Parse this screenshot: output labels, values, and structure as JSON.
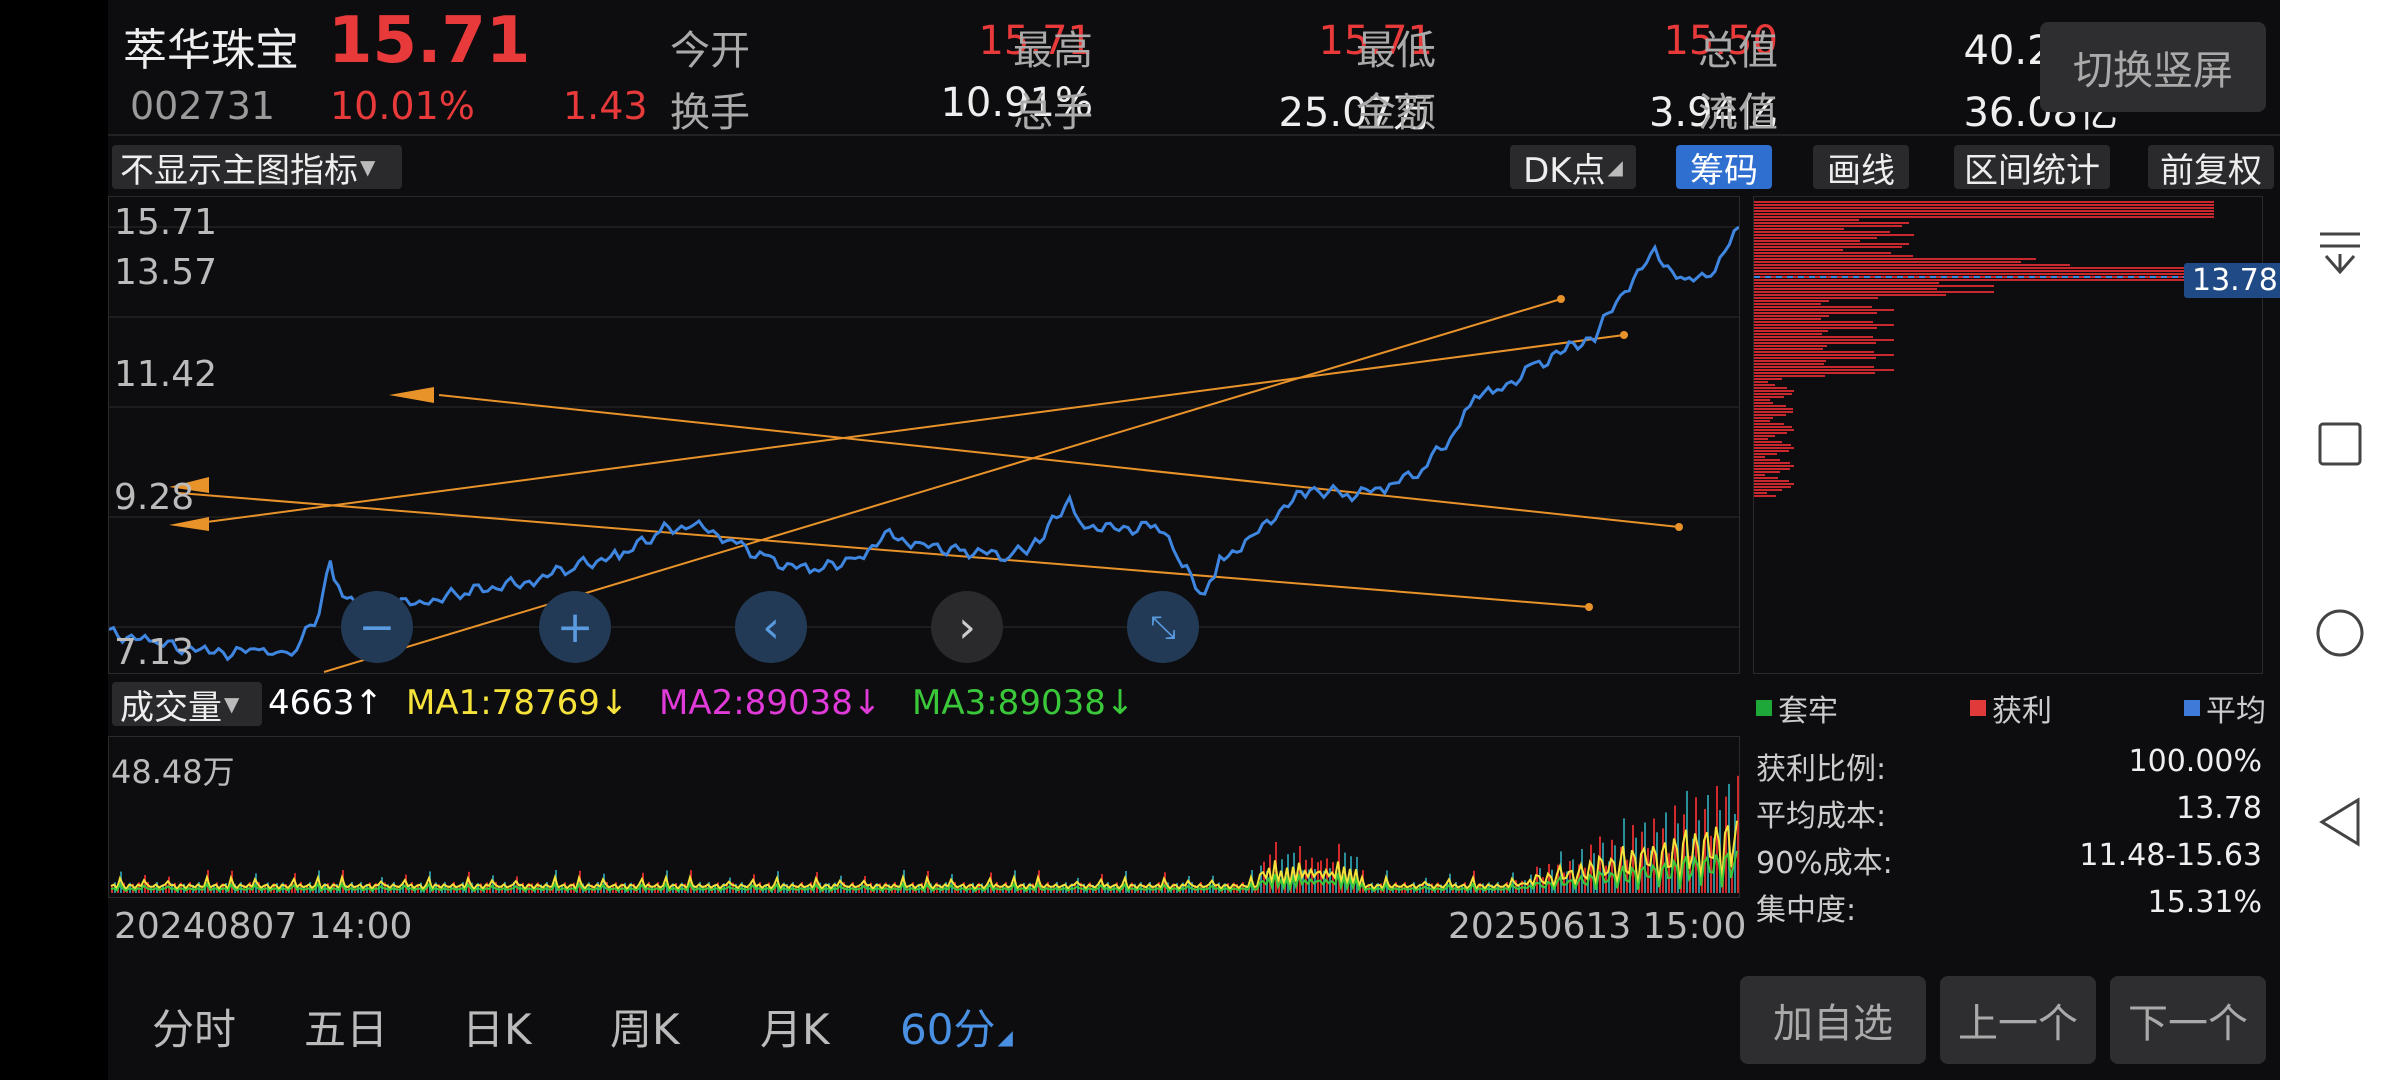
{
  "header": {
    "name": "萃华珠宝",
    "price": "15.71",
    "code": "002731",
    "change_pct": "10.01%",
    "change_abs": "1.43",
    "stats": [
      {
        "label": "今开",
        "value": "15.71",
        "color": "red"
      },
      {
        "label": "最高",
        "value": "15.71",
        "color": "red"
      },
      {
        "label": "最低",
        "value": "15.50",
        "color": "red"
      },
      {
        "label": "总值",
        "value": "40.24亿",
        "color": "white"
      },
      {
        "label": "换手",
        "value": "10.91%",
        "color": "white"
      },
      {
        "label": "总手",
        "value": "25.07万",
        "color": "white"
      },
      {
        "label": "金额",
        "value": "3.94亿",
        "color": "white"
      },
      {
        "label": "流值",
        "value": "36.08亿",
        "color": "white"
      }
    ],
    "portrait_button": "切换竖屏"
  },
  "toolbar": {
    "indicator_select": "不显示主图指标",
    "dk_button": "DK点",
    "chips_button": "筹码",
    "draw_button": "画线",
    "range_stats_button": "区间统计",
    "adjust_button": "前复权"
  },
  "price_chart": {
    "y_labels": [
      "15.71",
      "13.57",
      "11.42",
      "9.28",
      "7.13"
    ],
    "ylim": [
      7.13,
      15.71
    ],
    "colors": {
      "line": "#3f86e0",
      "trend": "#e8922a"
    }
  },
  "chips": {
    "marker_value": "13.78",
    "legend": [
      {
        "label": "套牢",
        "color": "#1fa83a"
      },
      {
        "label": "获利",
        "color": "#e03a3a"
      },
      {
        "label": "平均",
        "color": "#3f7ad8"
      }
    ],
    "stats": [
      {
        "label": "获利比例:",
        "value": "100.00%"
      },
      {
        "label": "平均成本:",
        "value": "13.78"
      },
      {
        "label": "90%成本:",
        "value": "11.48-15.63"
      },
      {
        "label": "集中度:",
        "value": "15.31%"
      }
    ]
  },
  "volume": {
    "selector": "成交量",
    "value": "4663↑",
    "ma1": "MA1:78769↓",
    "ma2": "MA2:89038↓",
    "ma3": "MA3:89038↓",
    "max_label": "48.48万",
    "colors": {
      "ma1": "#f5e23a",
      "ma2": "#e03ad8",
      "ma3": "#3ac83a"
    }
  },
  "dates": {
    "start": "20240807 14:00",
    "end": "20250613 15:00"
  },
  "tabs": [
    {
      "label": "分时",
      "active": false
    },
    {
      "label": "五日",
      "active": false
    },
    {
      "label": "日K",
      "active": false
    },
    {
      "label": "周K",
      "active": false
    },
    {
      "label": "月K",
      "active": false
    },
    {
      "label": "60分",
      "active": true
    }
  ],
  "actions": {
    "add": "加自选",
    "prev": "上一个",
    "next": "下一个"
  }
}
